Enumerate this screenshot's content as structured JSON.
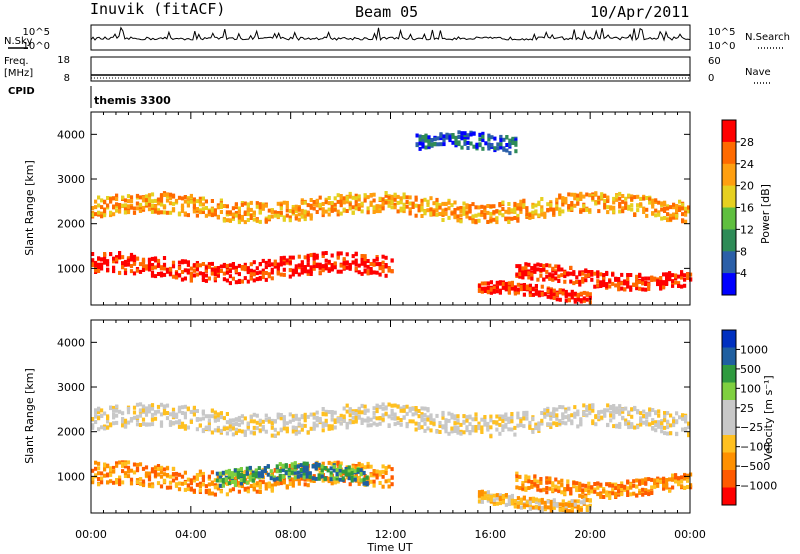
{
  "header": {
    "station": "Inuvik (fitACF)",
    "beam": "Beam 05",
    "date": "10/Apr/2011"
  },
  "side_labels": {
    "nsky": "N.Sky",
    "freq_top": "Freq.",
    "freq_unit": "[MHz]",
    "cpid": "CPID",
    "nsearch": "N.Search",
    "nave": "Nave"
  },
  "cpid_value": "themis 3300",
  "colors": {
    "power_scale": [
      "#0000ff",
      "#2b5fa8",
      "#2e8b57",
      "#5fbf3f",
      "#e6d020",
      "#ff9f10",
      "#ff6a00",
      "#ff0000"
    ],
    "velocity_scale": [
      "#ff0000",
      "#ff5a00",
      "#ff9000",
      "#ffc020",
      "#c8c8c8",
      "#c8c8c8",
      "#7fd040",
      "#2f9a3f",
      "#1f5fa0",
      "#0030c0"
    ]
  },
  "chart_data": [
    {
      "type": "line",
      "name": "noise-panel",
      "left_ticks": [
        "10^5",
        "10^0"
      ],
      "right_ticks": [
        "10^5",
        "10^0"
      ],
      "ylim": [
        0,
        5
      ]
    },
    {
      "type": "line",
      "name": "frequency-panel",
      "left_ticks": [
        "18",
        "8"
      ],
      "right_ticks": [
        "60",
        "0"
      ],
      "frequency_mhz": 10.5,
      "ylim": [
        8,
        18
      ]
    },
    {
      "type": "heatmap",
      "name": "power-panel",
      "ylabel": "Slant Range [km]",
      "yticks": [
        1000,
        2000,
        3000,
        4000
      ],
      "ylim": [
        180,
        4500
      ],
      "colorbar_label": "Power [dB]",
      "colorbar_ticks": [
        "28",
        "24",
        "20",
        "16",
        "12",
        "8",
        "4"
      ],
      "bands": [
        {
          "start": 0,
          "end": 24,
          "center": 2400,
          "width": 450,
          "level": 5
        },
        {
          "start": 0,
          "end": 12,
          "center": 1050,
          "width": 450,
          "level": 7
        },
        {
          "start": 17,
          "end": 24,
          "center": 850,
          "width": 350,
          "level": 7
        },
        {
          "start": 15.5,
          "end": 20,
          "center": 500,
          "width": 250,
          "level": 7
        },
        {
          "start": 13,
          "end": 17,
          "center": 3800,
          "width": 350,
          "level": 1
        }
      ]
    },
    {
      "type": "heatmap",
      "name": "velocity-panel",
      "xlabel": "Time UT",
      "ylabel": "Slant Range [km]",
      "xticks": [
        "00:00",
        "04:00",
        "08:00",
        "12:00",
        "16:00",
        "20:00",
        "00:00"
      ],
      "yticks": [
        1000,
        2000,
        3000,
        4000
      ],
      "ylim": [
        180,
        4500
      ],
      "colorbar_label": "Velocity [m s⁻¹]",
      "colorbar_ticks": [
        "1000",
        "500",
        "100",
        "25",
        "−25",
        "−100",
        "−500",
        "−1000"
      ],
      "bands": [
        {
          "start": 0,
          "end": 24,
          "center": 2300,
          "width": 500,
          "level": 4
        },
        {
          "start": 0,
          "end": 12,
          "center": 1000,
          "width": 500,
          "level": 2
        },
        {
          "start": 5,
          "end": 11,
          "center": 1050,
          "width": 350,
          "level": 7
        },
        {
          "start": 17,
          "end": 24,
          "center": 850,
          "width": 350,
          "level": 2
        },
        {
          "start": 15.5,
          "end": 20,
          "center": 500,
          "width": 250,
          "level": 3
        }
      ]
    }
  ]
}
